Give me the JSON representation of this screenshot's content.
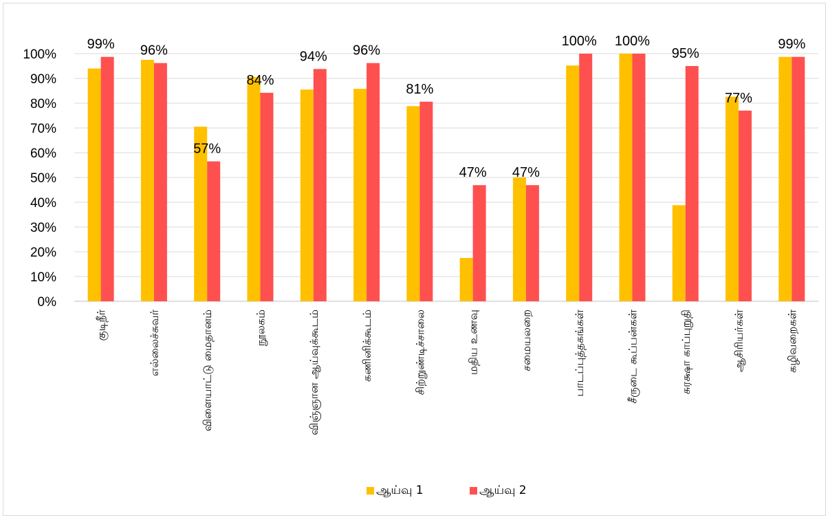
{
  "chart_data": {
    "type": "bar",
    "title": "",
    "xlabel": "",
    "ylabel": "",
    "ylim": [
      0,
      1
    ],
    "yticks": [
      "0%",
      "10%",
      "20%",
      "30%",
      "40%",
      "50%",
      "60%",
      "70%",
      "80%",
      "90%",
      "100%"
    ],
    "grid": true,
    "legend_position": "bottom",
    "categories": [
      "குடிநீர்",
      "எல்லைச்சுவர்",
      "விளையாட்டு மைதானம்",
      "நூலகம்",
      "விஞ்ஞான ஆய்வுக்கூடம்",
      "கணினிக்கூடம்",
      "சிற்றுண்டிச்சாலை",
      "மதிய உணவு",
      "சமையலறை",
      "பாடப்புத்தகங்கள்",
      "சீருடை கூப்பன்கள்",
      "சுரக்ஷா காப்புறுதி",
      "ஆசிரியர்கள்",
      "கழிவறைகள்"
    ],
    "series": [
      {
        "name": "ஆய்வு 1",
        "color": "#FFC000",
        "values": [
          0.94,
          0.975,
          0.705,
          0.905,
          0.855,
          0.858,
          0.788,
          0.175,
          0.5,
          0.952,
          1.0,
          0.388,
          0.826,
          0.987
        ]
      },
      {
        "name": "ஆய்வு 2",
        "color": "#FF5050",
        "values": [
          0.987,
          0.962,
          0.565,
          0.842,
          0.938,
          0.962,
          0.806,
          0.469,
          0.469,
          1.0,
          1.0,
          0.95,
          0.77,
          0.987
        ],
        "data_labels": [
          "99%",
          "96%",
          "57%",
          "84%",
          "94%",
          "96%",
          "81%",
          "47%",
          "47%",
          "100%",
          "100%",
          "95%",
          "77%",
          "99%"
        ]
      }
    ]
  }
}
